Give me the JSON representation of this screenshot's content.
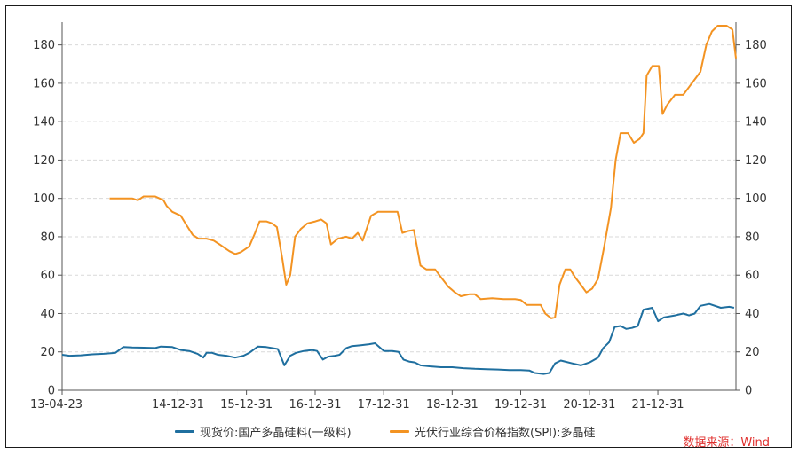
{
  "chart_data": {
    "type": "line",
    "title": "",
    "xlabel": "",
    "ylabel": "",
    "ylim": [
      0,
      190
    ],
    "y_ticks": [
      0,
      20,
      40,
      60,
      80,
      100,
      120,
      140,
      160,
      180
    ],
    "y2_ticks": [
      0,
      20,
      40,
      60,
      80,
      100,
      120,
      140,
      160,
      180
    ],
    "x_ticks": [
      "13-04-23",
      "14-12-31",
      "15-12-31",
      "16-12-31",
      "17-12-31",
      "18-12-31",
      "19-12-31",
      "20-12-31",
      "21-12-31"
    ],
    "grid": "horizontal-dashed",
    "legend_position": "bottom",
    "series": [
      {
        "name": "现货价:国产多晶硅料(一级料)",
        "color": "#1f6f9f",
        "axis": "left",
        "points": [
          [
            "2013-04-23",
            18.5
          ],
          [
            "2013-06-01",
            18
          ],
          [
            "2013-08-01",
            18.2
          ],
          [
            "2013-10-01",
            18.7
          ],
          [
            "2013-12-01",
            19
          ],
          [
            "2014-02-01",
            19.5
          ],
          [
            "2014-03-15",
            22.5
          ],
          [
            "2014-05-01",
            22.3
          ],
          [
            "2014-07-01",
            22.2
          ],
          [
            "2014-09-01",
            22
          ],
          [
            "2014-10-01",
            22.8
          ],
          [
            "2014-12-01",
            22.5
          ],
          [
            "2015-01-15",
            21
          ],
          [
            "2015-03-01",
            20.5
          ],
          [
            "2015-04-15",
            19
          ],
          [
            "2015-05-15",
            17
          ],
          [
            "2015-06-01",
            19.5
          ],
          [
            "2015-07-01",
            19.5
          ],
          [
            "2015-08-01",
            18.5
          ],
          [
            "2015-09-15",
            18
          ],
          [
            "2015-11-01",
            17
          ],
          [
            "2015-12-15",
            18
          ],
          [
            "2016-01-15",
            19.5
          ],
          [
            "2016-03-01",
            22.8
          ],
          [
            "2016-04-15",
            22.5
          ],
          [
            "2016-06-15",
            21.5
          ],
          [
            "2016-07-20",
            13
          ],
          [
            "2016-08-20",
            18
          ],
          [
            "2016-09-20",
            19.5
          ],
          [
            "2016-11-01",
            20.5
          ],
          [
            "2016-12-15",
            21
          ],
          [
            "2017-01-10",
            20.5
          ],
          [
            "2017-02-10",
            16
          ],
          [
            "2017-03-10",
            17.5
          ],
          [
            "2017-04-15",
            18
          ],
          [
            "2017-05-10",
            18.5
          ],
          [
            "2017-06-15",
            22
          ],
          [
            "2017-07-15",
            23
          ],
          [
            "2017-09-01",
            23.5
          ],
          [
            "2017-10-15",
            24
          ],
          [
            "2017-11-15",
            24.5
          ],
          [
            "2018-01-01",
            20.5
          ],
          [
            "2018-02-15",
            20.5
          ],
          [
            "2018-03-20",
            20
          ],
          [
            "2018-04-15",
            16
          ],
          [
            "2018-05-15",
            15
          ],
          [
            "2018-06-15",
            14.5
          ],
          [
            "2018-07-15",
            13
          ],
          [
            "2018-09-01",
            12.5
          ],
          [
            "2018-11-01",
            12
          ],
          [
            "2019-01-01",
            12
          ],
          [
            "2019-03-01",
            11.5
          ],
          [
            "2019-05-01",
            11.2
          ],
          [
            "2019-07-01",
            11
          ],
          [
            "2019-09-01",
            10.8
          ],
          [
            "2019-11-01",
            10.5
          ],
          [
            "2020-01-01",
            10.5
          ],
          [
            "2020-02-15",
            10.3
          ],
          [
            "2020-03-15",
            9
          ],
          [
            "2020-05-01",
            8.5
          ],
          [
            "2020-06-01",
            9
          ],
          [
            "2020-07-01",
            14
          ],
          [
            "2020-08-01",
            15.5
          ],
          [
            "2020-10-01",
            14
          ],
          [
            "2020-11-15",
            13
          ],
          [
            "2021-01-01",
            14.5
          ],
          [
            "2021-02-15",
            17
          ],
          [
            "2021-03-15",
            22
          ],
          [
            "2021-04-15",
            25
          ],
          [
            "2021-05-15",
            33
          ],
          [
            "2021-06-15",
            33.5
          ],
          [
            "2021-07-15",
            32
          ],
          [
            "2021-08-15",
            32.5
          ],
          [
            "2021-09-15",
            33.5
          ],
          [
            "2021-10-15",
            42
          ],
          [
            "2021-12-01",
            43
          ],
          [
            "2022-01-01",
            36
          ],
          [
            "2022-02-01",
            38
          ],
          [
            "2022-04-01",
            39
          ],
          [
            "2022-05-15",
            40
          ],
          [
            "2022-06-15",
            39
          ],
          [
            "2022-07-15",
            40
          ],
          [
            "2022-08-15",
            44
          ],
          [
            "2022-10-01",
            45
          ],
          [
            "2022-12-01",
            43
          ],
          [
            "2023-01-15",
            43.5
          ],
          [
            "2023-02-10",
            43
          ]
        ]
      },
      {
        "name": "光伏行业综合价格指数(SPI):多晶硅",
        "color": "#f39322",
        "axis": "right",
        "points": [
          [
            "2014-01-01",
            100
          ],
          [
            "2014-05-01",
            100
          ],
          [
            "2014-06-01",
            99
          ],
          [
            "2014-07-01",
            101
          ],
          [
            "2014-09-01",
            101
          ],
          [
            "2014-10-15",
            99
          ],
          [
            "2014-11-01",
            96
          ],
          [
            "2014-12-01",
            93
          ],
          [
            "2015-01-15",
            91
          ],
          [
            "2015-02-15",
            86
          ],
          [
            "2015-03-20",
            81
          ],
          [
            "2015-04-20",
            79
          ],
          [
            "2015-06-01",
            79
          ],
          [
            "2015-07-10",
            78
          ],
          [
            "2015-08-10",
            76
          ],
          [
            "2015-10-01",
            72.5
          ],
          [
            "2015-11-01",
            71
          ],
          [
            "2015-12-01",
            72
          ],
          [
            "2016-01-15",
            75
          ],
          [
            "2016-02-15",
            82
          ],
          [
            "2016-03-10",
            88
          ],
          [
            "2016-04-15",
            88
          ],
          [
            "2016-05-15",
            87
          ],
          [
            "2016-06-10",
            85
          ],
          [
            "2016-07-10",
            68
          ],
          [
            "2016-07-30",
            55
          ],
          [
            "2016-08-20",
            60
          ],
          [
            "2016-09-15",
            80
          ],
          [
            "2016-10-15",
            84
          ],
          [
            "2016-11-20",
            87
          ],
          [
            "2017-01-01",
            88
          ],
          [
            "2017-02-01",
            89
          ],
          [
            "2017-03-01",
            87
          ],
          [
            "2017-03-25",
            76
          ],
          [
            "2017-05-01",
            79
          ],
          [
            "2017-06-15",
            80
          ],
          [
            "2017-07-15",
            79
          ],
          [
            "2017-08-15",
            82
          ],
          [
            "2017-09-10",
            78
          ],
          [
            "2017-10-01",
            84
          ],
          [
            "2017-10-25",
            91
          ],
          [
            "2017-12-01",
            93
          ],
          [
            "2018-01-01",
            93
          ],
          [
            "2018-03-15",
            93
          ],
          [
            "2018-04-10",
            82
          ],
          [
            "2018-05-10",
            83
          ],
          [
            "2018-06-10",
            83.5
          ],
          [
            "2018-07-15",
            65
          ],
          [
            "2018-08-15",
            63
          ],
          [
            "2018-10-01",
            63
          ],
          [
            "2018-11-01",
            59
          ],
          [
            "2018-12-10",
            54
          ],
          [
            "2019-01-15",
            51
          ],
          [
            "2019-02-15",
            49
          ],
          [
            "2019-04-01",
            50
          ],
          [
            "2019-05-01",
            50
          ],
          [
            "2019-06-01",
            47.5
          ],
          [
            "2019-08-01",
            48
          ],
          [
            "2019-10-01",
            47.5
          ],
          [
            "2019-12-01",
            47.5
          ],
          [
            "2020-01-01",
            47
          ],
          [
            "2020-02-01",
            44.5
          ],
          [
            "2020-03-15",
            44.5
          ],
          [
            "2020-04-15",
            44.5
          ],
          [
            "2020-05-10",
            40
          ],
          [
            "2020-06-10",
            37.5
          ],
          [
            "2020-07-01",
            38
          ],
          [
            "2020-07-25",
            55
          ],
          [
            "2020-08-25",
            63
          ],
          [
            "2020-09-20",
            63
          ],
          [
            "2020-10-15",
            59
          ],
          [
            "2020-11-15",
            55
          ],
          [
            "2020-12-15",
            51
          ],
          [
            "2021-01-15",
            53
          ],
          [
            "2021-02-15",
            58
          ],
          [
            "2021-03-20",
            75
          ],
          [
            "2021-04-25",
            95
          ],
          [
            "2021-05-20",
            120
          ],
          [
            "2021-06-15",
            134
          ],
          [
            "2021-07-25",
            134
          ],
          [
            "2021-08-25",
            129
          ],
          [
            "2021-09-25",
            131
          ],
          [
            "2021-10-15",
            134
          ],
          [
            "2021-11-01",
            164
          ],
          [
            "2021-12-01",
            169
          ],
          [
            "2022-01-05",
            169
          ],
          [
            "2022-01-25",
            144
          ],
          [
            "2022-02-20",
            149
          ],
          [
            "2022-04-01",
            154
          ],
          [
            "2022-05-15",
            154
          ],
          [
            "2022-06-15",
            158
          ],
          [
            "2022-07-15",
            162
          ],
          [
            "2022-08-15",
            166
          ],
          [
            "2022-09-15",
            180
          ],
          [
            "2022-10-15",
            187
          ],
          [
            "2022-11-15",
            190
          ],
          [
            "2023-01-01",
            190
          ],
          [
            "2023-02-01",
            188
          ],
          [
            "2023-02-20",
            173
          ]
        ]
      }
    ]
  },
  "source": "数据来源：Wind"
}
